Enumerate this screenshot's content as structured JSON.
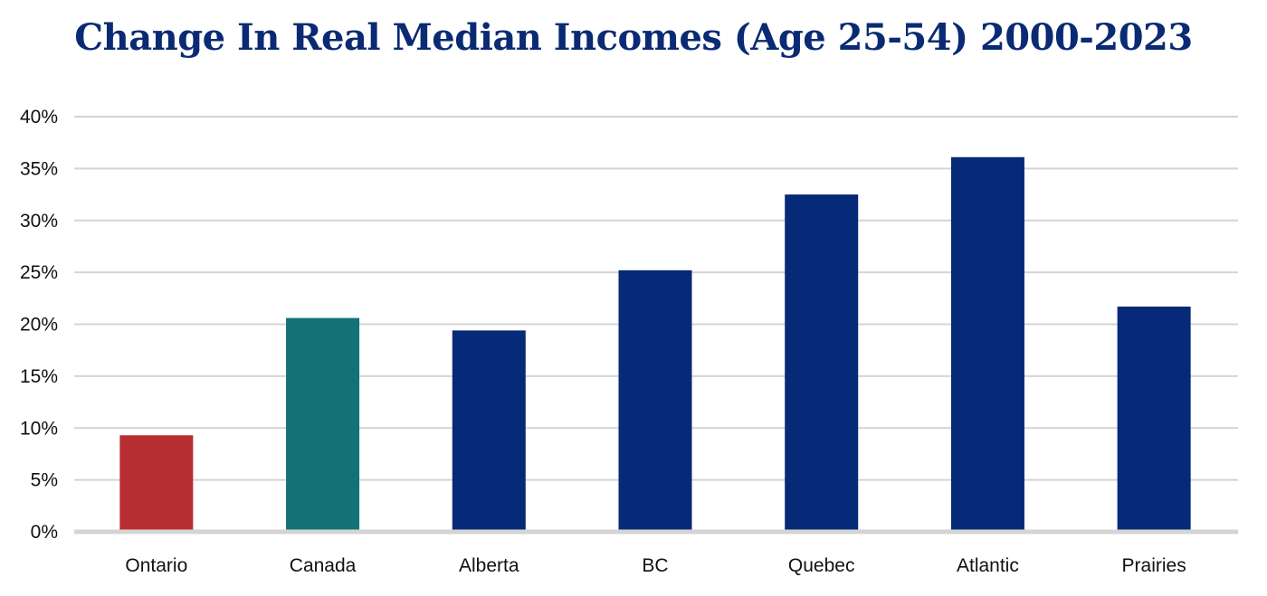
{
  "chart_data": {
    "type": "bar",
    "title": "Change In Real Median Incomes (Age 25-54) 2000-2023",
    "xlabel": "",
    "ylabel": "",
    "categories": [
      "Ontario",
      "Canada",
      "Alberta",
      "BC",
      "Quebec",
      "Atlantic",
      "Prairies"
    ],
    "values": [
      9.3,
      20.6,
      19.4,
      25.2,
      32.5,
      36.1,
      21.7
    ],
    "bar_colors": [
      "#b82e32",
      "#127275",
      "#062a78",
      "#062a78",
      "#062a78",
      "#062a78",
      "#062a78"
    ],
    "ylim": [
      0,
      40
    ],
    "yticks": [
      0,
      5,
      10,
      15,
      20,
      25,
      30,
      35,
      40
    ],
    "ytick_labels": [
      "0%",
      "5%",
      "10%",
      "15%",
      "20%",
      "25%",
      "30%",
      "35%",
      "40%"
    ],
    "grid": true,
    "legend": "none"
  }
}
